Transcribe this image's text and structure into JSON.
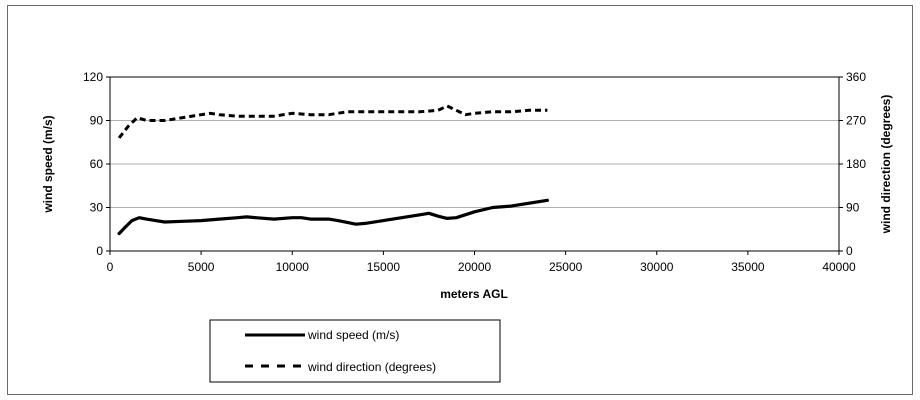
{
  "chart_data": {
    "type": "line",
    "xlabel": "meters AGL",
    "ylabel": "wind speed (m/s)",
    "y2label": "wind direction (degrees)",
    "xlim": [
      0,
      40000
    ],
    "ylim": [
      0,
      120
    ],
    "y2lim": [
      0,
      360
    ],
    "x_ticks": [
      "0",
      "5000",
      "10000",
      "15000",
      "20000",
      "25000",
      "30000",
      "35000",
      "40000"
    ],
    "y_ticks": [
      "0",
      "30",
      "60",
      "90",
      "120"
    ],
    "y2_ticks": [
      "0",
      "90",
      "180",
      "270",
      "360"
    ],
    "grid": "horizontal",
    "legend_position": "bottom-left",
    "series": [
      {
        "name": "wind speed (m/s)",
        "axis": "left",
        "style": "solid",
        "color": "#000000",
        "x": [
          500,
          800,
          1200,
          1600,
          2000,
          2500,
          3000,
          4000,
          5000,
          6000,
          7000,
          7500,
          8000,
          9000,
          10000,
          10500,
          11000,
          12000,
          12500,
          13500,
          14000,
          15000,
          16000,
          17000,
          17500,
          18000,
          18500,
          19000,
          20000,
          21000,
          22000,
          23000,
          24000
        ],
        "values": [
          12,
          16,
          21,
          23,
          22,
          21,
          20,
          20.5,
          21,
          22,
          23,
          23.5,
          23,
          22,
          23,
          23,
          22,
          22,
          21,
          18.5,
          19,
          21,
          23,
          25,
          26,
          24,
          22.5,
          23,
          27,
          30,
          31,
          33,
          35
        ]
      },
      {
        "name": "wind direction (degrees)",
        "axis": "right",
        "style": "dashed",
        "color": "#000000",
        "x": [
          500,
          1000,
          1500,
          2000,
          3000,
          4000,
          5000,
          5500,
          6000,
          7000,
          8000,
          9000,
          10000,
          11000,
          12000,
          12500,
          13000,
          14000,
          15000,
          16000,
          17000,
          18000,
          18500,
          19000,
          19500,
          20000,
          21000,
          22000,
          23000,
          24000
        ],
        "values": [
          234,
          258,
          276,
          270,
          270,
          276,
          282,
          285,
          282,
          279,
          279,
          279,
          285,
          282,
          282,
          285,
          288,
          288,
          288,
          288,
          288,
          291,
          300,
          291,
          282,
          285,
          288,
          288,
          291,
          291
        ]
      }
    ]
  }
}
